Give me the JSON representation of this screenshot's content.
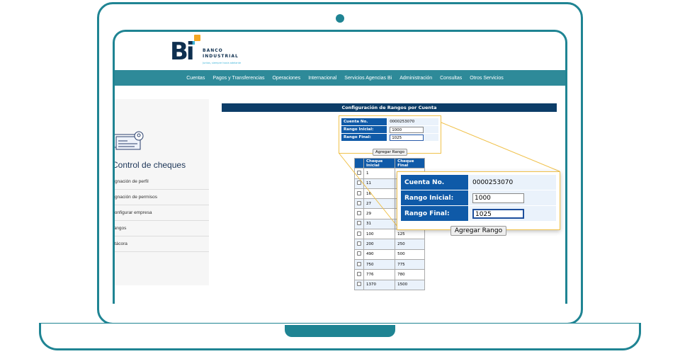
{
  "bank": {
    "logo": "Bi",
    "name_line1": "BANCO",
    "name_line2": "INDUSTRIAL",
    "tagline": "Juntos, siempre hacia adelante",
    "colors": {
      "navy": "#0e2f4f",
      "orange": "#f5a623",
      "cyan": "#3bb3d8"
    }
  },
  "nav": [
    "Cuentas",
    "Pagos y Transferencias",
    "Operaciones",
    "Internacional",
    "Servicios Agencias Bi",
    "Administración",
    "Consultas",
    "Otros Servicios"
  ],
  "sidebar": {
    "title": "Control de cheques",
    "items": [
      "Asignación de perfil",
      "Asignación de permisos",
      "Configurar empresa",
      "Rangos",
      "Bitácora"
    ]
  },
  "main": {
    "title": "Configuración de Rangos por Cuenta",
    "form": {
      "account_label": "Cuenta No.",
      "account": "0000253070",
      "start_label": "Rango Inicial:",
      "start": "1000",
      "end_label": "Rango Final:",
      "end": "1025",
      "button": "Agregar Rango"
    },
    "table": {
      "headers": [
        "",
        "Cheque Inicial",
        "Cheque Final"
      ],
      "rows": [
        [
          "1",
          ""
        ],
        [
          "11",
          ""
        ],
        [
          "16",
          ""
        ],
        [
          "27",
          ""
        ],
        [
          "29",
          ""
        ],
        [
          "31",
          ""
        ],
        [
          "100",
          "125"
        ],
        [
          "200",
          "250"
        ],
        [
          "490",
          "500"
        ],
        [
          "750",
          "775"
        ],
        [
          "776",
          "780"
        ],
        [
          "1370",
          "1500"
        ]
      ]
    }
  },
  "accent": "#1f8493"
}
